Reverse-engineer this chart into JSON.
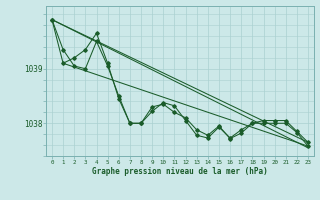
{
  "background_color": "#cce8e8",
  "grid_color": "#aad0d0",
  "line_color": "#1a5c2a",
  "spine_color": "#7ab0b0",
  "xlabel": "Graphe pression niveau de la mer (hPa)",
  "x_ticks": [
    0,
    1,
    2,
    3,
    4,
    5,
    6,
    7,
    8,
    9,
    10,
    11,
    12,
    13,
    14,
    15,
    16,
    17,
    18,
    19,
    20,
    21,
    22,
    23
  ],
  "ylim": [
    1037.4,
    1040.15
  ],
  "ytick_labels": [
    "1038",
    "1039"
  ],
  "ytick_vals": [
    1038.0,
    1039.0
  ],
  "series1": [
    1039.9,
    1039.35,
    1039.05,
    1039.0,
    1039.5,
    1039.05,
    1038.5,
    1038.0,
    1038.0,
    1038.3,
    1038.35,
    1038.2,
    1038.1,
    1037.88,
    1037.78,
    1037.95,
    1037.72,
    1037.82,
    1038.0,
    1038.05,
    1038.05,
    1038.05,
    1037.85,
    1037.65
  ],
  "series2": [
    1039.9,
    1039.1,
    1039.2,
    1039.35,
    1039.65,
    1039.1,
    1038.45,
    1038.0,
    1038.0,
    1038.22,
    1038.38,
    1038.32,
    1038.05,
    1037.78,
    1037.73,
    1037.93,
    1037.73,
    1037.88,
    1038.0,
    1038.0,
    1038.0,
    1038.0,
    1037.83,
    1037.58
  ],
  "line1_x": [
    0,
    23
  ],
  "line1_y": [
    1039.9,
    1037.65
  ],
  "line2_x": [
    0,
    23
  ],
  "line2_y": [
    1039.9,
    1037.55
  ],
  "line3_x": [
    1,
    23
  ],
  "line3_y": [
    1039.1,
    1037.58
  ]
}
